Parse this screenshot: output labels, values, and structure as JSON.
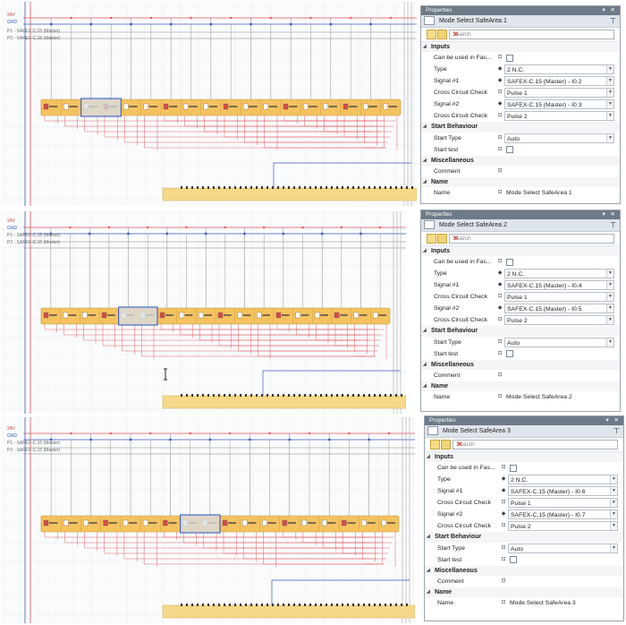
{
  "colors": {
    "wire_red": "#e0525a",
    "wire_blue": "#3b5bc0",
    "module_orange": "#f4c25f",
    "selected_blue": "#3c5ec6"
  },
  "canvas": {
    "rails": {
      "v24": "24V",
      "gnd": "GND",
      "p1": "P1 - SAFEX-C.15 (Master)",
      "p2": "P2 - SAFEX-C.15 (Master)"
    }
  },
  "panels": [
    {
      "window_title": "Properties",
      "window_controls": "▾ ✕",
      "header": "Mode Select SafeArea 1",
      "search_placeholder": "Search",
      "inputs": {
        "label": "Inputs",
        "can_be_used": "Can be used in Fas...",
        "type_label": "Type",
        "type_value": "2 N.C.",
        "signal1_label": "Signal #1",
        "signal1_value": "SAFEX-C.15 (Master) - I0.2",
        "ccc1_label": "Cross Circuit Check",
        "ccc1_value": "Pulse 1",
        "signal2_label": "Signal #2",
        "signal2_value": "SAFEX-C.15 (Master) - I0.3",
        "ccc2_label": "Cross Circuit Check",
        "ccc2_value": "Pulse 2"
      },
      "start": {
        "label": "Start Behaviour",
        "type_label": "Start Type",
        "type_value": "Auto",
        "test_label": "Start test"
      },
      "misc": {
        "label": "Miscellaneous",
        "comment_label": "Comment"
      },
      "name": {
        "label": "Name",
        "name_label": "Name",
        "name_value": "Mode Select SafeArea 1"
      }
    },
    {
      "window_title": "Properties",
      "window_controls": "▾ ✕",
      "header": "Mode Select SafeArea 2",
      "search_placeholder": "Search",
      "inputs": {
        "label": "Inputs",
        "can_be_used": "Can be used in Fas...",
        "type_label": "Type",
        "type_value": "2 N.C.",
        "signal1_label": "Signal #1",
        "signal1_value": "SAFEX-C.15 (Master) - I0.4",
        "ccc1_label": "Cross Circuit Check",
        "ccc1_value": "Pulse 1",
        "signal2_label": "Signal #2",
        "signal2_value": "SAFEX-C.15 (Master) - I0.5",
        "ccc2_label": "Cross Circuit Check",
        "ccc2_value": "Pulse 2"
      },
      "start": {
        "label": "Start Behaviour",
        "type_label": "Start Type",
        "type_value": "Auto",
        "test_label": "Start test"
      },
      "misc": {
        "label": "Miscellaneous",
        "comment_label": "Comment"
      },
      "name": {
        "label": "Name",
        "name_label": "Name",
        "name_value": "Mode Select SafeArea 2"
      }
    },
    {
      "window_title": "Properties",
      "window_controls": "▾ ✕",
      "header": "Mode Select SafeArea 3",
      "search_placeholder": "Search",
      "inputs": {
        "label": "Inputs",
        "can_be_used": "Can be used in Fas...",
        "type_label": "Type",
        "type_value": "2 N.C.",
        "signal1_label": "Signal #1",
        "signal1_value": "SAFEX-C.15 (Master) - I0.6",
        "ccc1_label": "Cross Circuit Check",
        "ccc1_value": "Pulse 1",
        "signal2_label": "Signal #2",
        "signal2_value": "SAFEX-C.15 (Master) - I0.7",
        "ccc2_label": "Cross Circuit Check",
        "ccc2_value": "Pulse 2"
      },
      "start": {
        "label": "Start Behaviour",
        "type_label": "Start Type",
        "type_value": "Auto",
        "test_label": "Start test"
      },
      "misc": {
        "label": "Miscellaneous",
        "comment_label": "Comment"
      },
      "name": {
        "label": "Name",
        "name_label": "Name",
        "name_value": "Mode Select SafeArea 3"
      }
    }
  ]
}
